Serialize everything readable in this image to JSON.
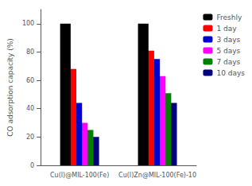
{
  "chart_data": {
    "type": "bar",
    "categories": [
      "Cu(I)@MIL-100(Fe)",
      "Cu(I)Zn@MIL-100(Fe)-10"
    ],
    "series": [
      {
        "name": "Freshly",
        "color": "#000000",
        "values": [
          100,
          100
        ]
      },
      {
        "name": "1 day",
        "color": "#ff0000",
        "values": [
          68,
          81
        ]
      },
      {
        "name": "3 days",
        "color": "#0000cd",
        "values": [
          44,
          75
        ]
      },
      {
        "name": "5 days",
        "color": "#ff00ff",
        "values": [
          30,
          63
        ]
      },
      {
        "name": "7 days",
        "color": "#008000",
        "values": [
          25,
          51
        ]
      },
      {
        "name": "10 days",
        "color": "#000080",
        "values": [
          20,
          44
        ]
      }
    ],
    "ylabel": "CO adsorption capacity (%)",
    "ylim": [
      0,
      110
    ],
    "yticks": [
      0,
      20,
      40,
      60,
      80,
      100
    ],
    "grid": false,
    "legend": "upper right"
  }
}
